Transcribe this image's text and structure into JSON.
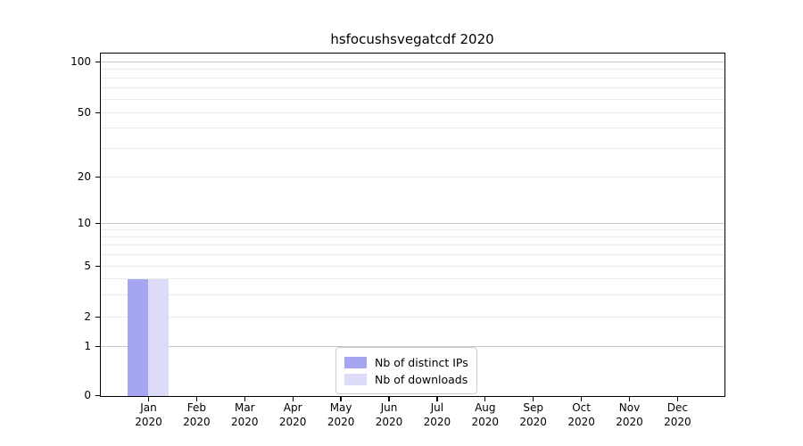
{
  "chart_data": {
    "type": "bar",
    "title": "hsfocushsvegatcdf 2020",
    "categories": [
      "Jan",
      "Feb",
      "Mar",
      "Apr",
      "May",
      "Jun",
      "Jul",
      "Aug",
      "Sep",
      "Oct",
      "Nov",
      "Dec"
    ],
    "year_label": "2020",
    "series": [
      {
        "name": "Nb of distinct IPs",
        "color": "#a5a5f0",
        "values": [
          4,
          0,
          0,
          0,
          0,
          0,
          0,
          0,
          0,
          0,
          0,
          0
        ]
      },
      {
        "name": "Nb of downloads",
        "color": "#dcdcf8",
        "values": [
          4,
          0,
          0,
          0,
          0,
          0,
          0,
          0,
          0,
          0,
          0,
          0
        ]
      }
    ],
    "y_axis": {
      "scale": "symlog",
      "labeled_ticks": [
        0,
        1,
        2,
        5,
        10,
        20,
        50,
        100
      ],
      "major_gridlines": [
        1,
        10,
        100
      ],
      "minor_gridlines": [
        2,
        3,
        4,
        5,
        6,
        7,
        8,
        9,
        20,
        30,
        40,
        50,
        60,
        70,
        80,
        90
      ],
      "ylim": [
        0,
        115
      ]
    },
    "x_axis": {
      "tick_labels_two_line": true
    },
    "grid": true,
    "legend": {
      "position": "lower-center",
      "entries": [
        "Nb of distinct IPs",
        "Nb of downloads"
      ]
    }
  }
}
